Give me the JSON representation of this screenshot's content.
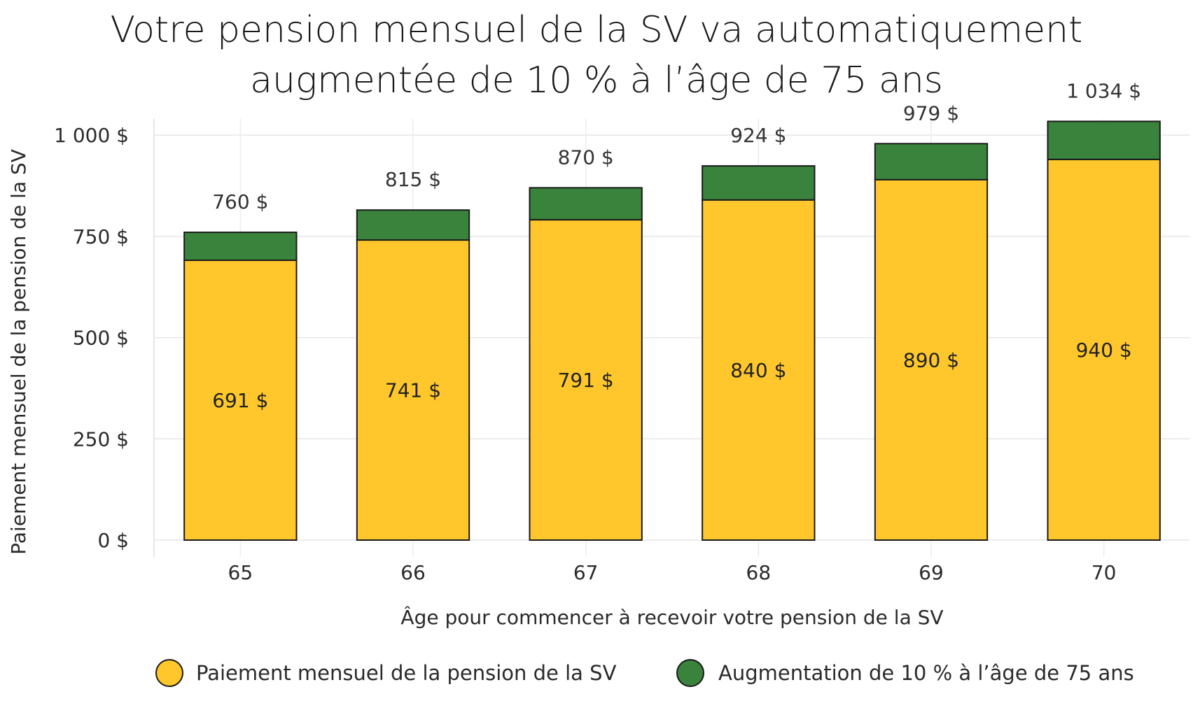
{
  "chart_data": {
    "type": "bar",
    "stacked": true,
    "title_lines": [
      "Votre pension mensuel de la SV va automatiquement",
      "augmentée de 10 % à l’âge de 75 ans"
    ],
    "xlabel": "Âge pour commencer à recevoir votre pension de la SV",
    "ylabel": "Paiement mensuel de la pension de la SV",
    "categories": [
      "65",
      "66",
      "67",
      "68",
      "69",
      "70"
    ],
    "ylim": [
      0,
      1040
    ],
    "yticks": [
      0,
      250,
      500,
      750,
      1000
    ],
    "ytick_labels": [
      "0 $",
      "250 $",
      "500 $",
      "750 $",
      "1 000 $"
    ],
    "grid": true,
    "legend_position": "bottom",
    "series": [
      {
        "name": "Paiement mensuel de la pension de la SV",
        "values": [
          691,
          741,
          791,
          840,
          890,
          940
        ],
        "labels": [
          "691 $",
          "741 $",
          "791 $",
          "840 $",
          "890 $",
          "940 $"
        ],
        "color": "#FFC72C"
      },
      {
        "name": "Augmentation de 10 % à l’âge de 75 ans",
        "values": [
          69,
          74,
          79,
          84,
          89,
          94
        ],
        "color": "#3A833C"
      }
    ],
    "totals": [
      760,
      815,
      870,
      924,
      979,
      1034
    ],
    "total_labels": [
      "760 $",
      "815 $",
      "870 $",
      "924 $",
      "979 $",
      "1 034 $"
    ]
  }
}
